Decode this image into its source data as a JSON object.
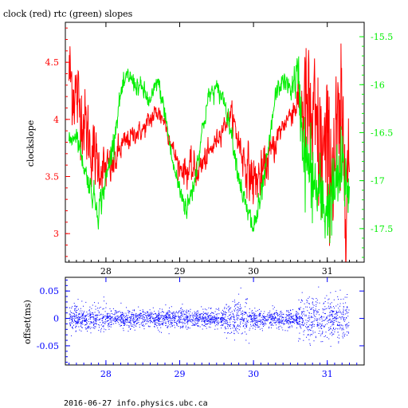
{
  "title": "clock (red) rtc (green) slopes",
  "footer": "2016-06-27 info.physics.ubc.ca",
  "colors": {
    "clock": "#ff0000",
    "rtc": "#00ee00",
    "offset": "#0000ff",
    "frame": "#000000"
  },
  "chart_data": [
    {
      "type": "line",
      "xlim": [
        27.45,
        31.5
      ],
      "x_ticks": [
        28,
        29,
        30,
        31
      ],
      "x_tick_labels": [
        "28",
        "29",
        "30",
        "31"
      ],
      "ylabel": "clockslope",
      "ylim": [
        2.75,
        4.85
      ],
      "y_ticks": [
        3,
        3.5,
        4,
        4.5
      ],
      "y_tick_labels": [
        "3",
        "3.5",
        "4",
        "4.5"
      ],
      "y2lim": [
        -17.85,
        -15.35
      ],
      "y2_ticks": [
        -17.5,
        -17,
        -16.5,
        -16,
        -15.5
      ],
      "y2_tick_labels": [
        "-17.5",
        "-17",
        "-16.5",
        "-16",
        "-15.5"
      ],
      "grid": false,
      "series": [
        {
          "name": "clock",
          "color": "#ff0000",
          "axis": "left",
          "x": [
            27.5,
            27.6,
            27.7,
            27.8,
            27.9,
            28.0,
            28.1,
            28.2,
            28.3,
            28.4,
            28.5,
            28.6,
            28.7,
            28.8,
            28.9,
            29.0,
            29.1,
            29.2,
            29.3,
            29.4,
            29.5,
            29.6,
            29.7,
            29.8,
            29.9,
            30.0,
            30.1,
            30.2,
            30.3,
            30.4,
            30.5,
            30.6,
            30.7,
            30.8,
            30.9,
            31.0,
            31.1,
            31.2,
            31.3
          ],
          "values": [
            4.4,
            4.2,
            4.0,
            3.75,
            3.6,
            3.55,
            3.6,
            3.75,
            3.82,
            3.88,
            3.9,
            4.0,
            4.07,
            3.98,
            3.75,
            3.58,
            3.55,
            3.55,
            3.6,
            3.7,
            3.82,
            3.95,
            4.05,
            3.8,
            3.6,
            3.45,
            3.5,
            3.65,
            3.8,
            3.95,
            4.05,
            4.15,
            4.1,
            3.9,
            3.75,
            3.6,
            3.7,
            3.8,
            3.55
          ],
          "noise": [
            0.25,
            0.22,
            0.2,
            0.18,
            0.15,
            0.12,
            0.1,
            0.08,
            0.06,
            0.05,
            0.05,
            0.06,
            0.06,
            0.05,
            0.05,
            0.06,
            0.08,
            0.1,
            0.08,
            0.06,
            0.05,
            0.05,
            0.06,
            0.1,
            0.12,
            0.15,
            0.12,
            0.1,
            0.08,
            0.06,
            0.06,
            0.1,
            0.35,
            0.4,
            0.42,
            0.42,
            0.45,
            0.45,
            0.4
          ]
        },
        {
          "name": "rtc",
          "color": "#00ee00",
          "axis": "right",
          "x": [
            27.5,
            27.6,
            27.7,
            27.8,
            27.9,
            28.0,
            28.1,
            28.2,
            28.3,
            28.4,
            28.5,
            28.6,
            28.7,
            28.8,
            28.9,
            29.0,
            29.1,
            29.2,
            29.3,
            29.4,
            29.5,
            29.6,
            29.7,
            29.8,
            29.9,
            30.0,
            30.1,
            30.2,
            30.3,
            30.4,
            30.5,
            30.6,
            30.7,
            30.8,
            30.9,
            31.0,
            31.1,
            31.2,
            31.3
          ],
          "values": [
            -16.6,
            -16.5,
            -16.85,
            -17.1,
            -17.3,
            -17.0,
            -16.6,
            -16.1,
            -15.9,
            -16.0,
            -16.05,
            -16.2,
            -15.95,
            -16.3,
            -16.8,
            -17.1,
            -17.3,
            -17.0,
            -16.5,
            -16.1,
            -16.05,
            -16.15,
            -16.5,
            -16.95,
            -17.3,
            -17.5,
            -17.2,
            -16.7,
            -16.1,
            -15.95,
            -16.05,
            -15.9,
            -16.8,
            -17.0,
            -17.2,
            -17.3,
            -17.1,
            -16.9,
            -17.1
          ],
          "noise": [
            0.05,
            0.06,
            0.06,
            0.08,
            0.1,
            0.08,
            0.07,
            0.06,
            0.06,
            0.06,
            0.06,
            0.06,
            0.06,
            0.06,
            0.06,
            0.07,
            0.08,
            0.08,
            0.07,
            0.06,
            0.06,
            0.06,
            0.06,
            0.07,
            0.08,
            0.1,
            0.08,
            0.06,
            0.06,
            0.06,
            0.07,
            0.15,
            0.3,
            0.28,
            0.25,
            0.25,
            0.25,
            0.25,
            0.2
          ]
        }
      ]
    },
    {
      "type": "scatter",
      "xlim": [
        27.45,
        31.5
      ],
      "x_ticks": [
        28,
        29,
        30,
        31
      ],
      "x_tick_labels": [
        "28",
        "29",
        "30",
        "31"
      ],
      "ylabel": "offset(ms)",
      "ylim": [
        -0.085,
        0.075
      ],
      "y_ticks": [
        -0.05,
        0,
        0.05
      ],
      "y_tick_labels": [
        "-0.05",
        "0",
        "0.05"
      ],
      "grid": false,
      "series": [
        {
          "name": "offset",
          "color": "#0000ff",
          "x_range": [
            27.5,
            31.3
          ],
          "center": 0.0,
          "spread": [
            {
              "x": [
                27.5,
                28.0
              ],
              "sd": 0.012
            },
            {
              "x": [
                28.0,
                29.6
              ],
              "sd": 0.008
            },
            {
              "x": [
                29.6,
                29.95
              ],
              "sd": 0.016
            },
            {
              "x": [
                29.95,
                30.6
              ],
              "sd": 0.008
            },
            {
              "x": [
                30.6,
                31.3
              ],
              "sd": 0.02
            }
          ]
        }
      ]
    }
  ]
}
